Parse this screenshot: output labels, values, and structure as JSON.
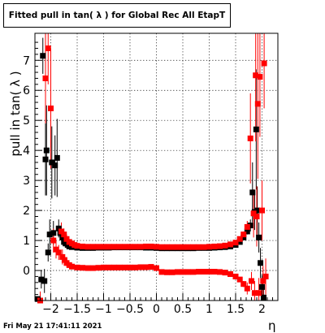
{
  "title": "Fitted pull in tan( λ ) for Global Rec All EtapT",
  "timestamp": "Fri May 21 17:41:11 2021",
  "chart_data": {
    "type": "scatter",
    "title": "Fitted pull in tan( λ ) for Global Rec All EtapT",
    "xlabel": "η",
    "ylabel": "pull in tan( λ )",
    "xlim": [
      -2.3,
      2.3
    ],
    "ylim": [
      -1.0,
      7.9
    ],
    "grid": true,
    "x_ticks": [
      -2,
      -1.5,
      -1,
      -0.5,
      0,
      0.5,
      1,
      1.5,
      2
    ],
    "x_tick_labels": [
      "−2",
      "−1.5",
      "−1",
      "−0.5",
      "0",
      "0.5",
      "1",
      "1.5",
      "2"
    ],
    "y_ticks": [
      0,
      1,
      2,
      3,
      4,
      5,
      6,
      7
    ],
    "y_tick_labels": [
      "0",
      "1",
      "2",
      "3",
      "4",
      "5",
      "6",
      "7"
    ],
    "colors": {
      "black_series": "#000000",
      "red_series": "#ff0000"
    },
    "series": [
      {
        "color": "black",
        "points": [
          {
            "x": -2.25,
            "y": -0.95,
            "err": 0.0
          },
          {
            "x": -2.18,
            "y": -0.3,
            "err": 0.3
          },
          {
            "x": -2.15,
            "y": 7.15,
            "err": 0.6
          },
          {
            "x": -2.12,
            "y": -0.35,
            "err": 0.4
          },
          {
            "x": -2.1,
            "y": 3.7,
            "err": 1.2
          },
          {
            "x": -2.08,
            "y": 4.0,
            "err": 1.5
          },
          {
            "x": -2.05,
            "y": 0.6,
            "err": 0.3
          },
          {
            "x": -2.02,
            "y": 1.2,
            "err": 0.5
          },
          {
            "x": -1.98,
            "y": 3.6,
            "err": 1.2
          },
          {
            "x": -1.95,
            "y": 1.25,
            "err": 0.4
          },
          {
            "x": -1.92,
            "y": 3.5,
            "err": 1.0
          },
          {
            "x": -1.88,
            "y": 3.75,
            "err": 1.3
          },
          {
            "x": -1.85,
            "y": 1.4,
            "err": 0.3
          },
          {
            "x": -1.82,
            "y": 1.25,
            "err": 0.2
          },
          {
            "x": -1.78,
            "y": 1.1,
            "err": 0.15
          },
          {
            "x": -1.75,
            "y": 0.95,
            "err": 0.1
          },
          {
            "x": -1.72,
            "y": 0.9,
            "err": 0.05
          },
          {
            "x": -1.68,
            "y": 0.85,
            "err": 0.05
          },
          {
            "x": -1.65,
            "y": 0.8,
            "err": 0.03
          },
          {
            "x": -1.6,
            "y": 0.78,
            "err": 0.02
          },
          {
            "x": -1.5,
            "y": 0.76,
            "err": 0.02
          },
          {
            "x": -1.4,
            "y": 0.75,
            "err": 0.02
          },
          {
            "x": -1.3,
            "y": 0.75,
            "err": 0.02
          },
          {
            "x": -1.2,
            "y": 0.75,
            "err": 0.02
          },
          {
            "x": -1.1,
            "y": 0.76,
            "err": 0.02
          },
          {
            "x": -1.0,
            "y": 0.76,
            "err": 0.02
          },
          {
            "x": -0.9,
            "y": 0.76,
            "err": 0.02
          },
          {
            "x": -0.8,
            "y": 0.77,
            "err": 0.02
          },
          {
            "x": -0.7,
            "y": 0.77,
            "err": 0.02
          },
          {
            "x": -0.6,
            "y": 0.77,
            "err": 0.02
          },
          {
            "x": -0.5,
            "y": 0.77,
            "err": 0.02
          },
          {
            "x": -0.4,
            "y": 0.77,
            "err": 0.02
          },
          {
            "x": -0.3,
            "y": 0.77,
            "err": 0.02
          },
          {
            "x": -0.2,
            "y": 0.76,
            "err": 0.02
          },
          {
            "x": -0.1,
            "y": 0.76,
            "err": 0.02
          },
          {
            "x": 0.0,
            "y": 0.75,
            "err": 0.02
          },
          {
            "x": 0.1,
            "y": 0.74,
            "err": 0.02
          },
          {
            "x": 0.2,
            "y": 0.74,
            "err": 0.02
          },
          {
            "x": 0.3,
            "y": 0.74,
            "err": 0.02
          },
          {
            "x": 0.4,
            "y": 0.74,
            "err": 0.02
          },
          {
            "x": 0.5,
            "y": 0.74,
            "err": 0.02
          },
          {
            "x": 0.6,
            "y": 0.74,
            "err": 0.02
          },
          {
            "x": 0.7,
            "y": 0.74,
            "err": 0.02
          },
          {
            "x": 0.8,
            "y": 0.75,
            "err": 0.02
          },
          {
            "x": 0.9,
            "y": 0.75,
            "err": 0.02
          },
          {
            "x": 1.0,
            "y": 0.75,
            "err": 0.02
          },
          {
            "x": 1.1,
            "y": 0.76,
            "err": 0.02
          },
          {
            "x": 1.2,
            "y": 0.77,
            "err": 0.02
          },
          {
            "x": 1.3,
            "y": 0.78,
            "err": 0.02
          },
          {
            "x": 1.4,
            "y": 0.8,
            "err": 0.03
          },
          {
            "x": 1.5,
            "y": 0.85,
            "err": 0.03
          },
          {
            "x": 1.58,
            "y": 0.95,
            "err": 0.05
          },
          {
            "x": 1.65,
            "y": 1.1,
            "err": 0.08
          },
          {
            "x": 1.72,
            "y": 1.3,
            "err": 0.1
          },
          {
            "x": 1.78,
            "y": 1.5,
            "err": 0.2
          },
          {
            "x": 1.82,
            "y": 2.6,
            "err": 1.0
          },
          {
            "x": 1.86,
            "y": 1.95,
            "err": 0.6
          },
          {
            "x": 1.89,
            "y": 4.7,
            "err": 2.0
          },
          {
            "x": 1.91,
            "y": 2.0,
            "err": 0.8
          },
          {
            "x": 1.94,
            "y": 1.1,
            "err": 0.5
          },
          {
            "x": 1.97,
            "y": 0.25,
            "err": 0.5
          },
          {
            "x": 2.0,
            "y": -0.55,
            "err": 0.4
          },
          {
            "x": 2.03,
            "y": -0.9,
            "err": 0.3
          }
        ]
      },
      {
        "color": "red",
        "points": [
          {
            "x": -2.1,
            "y": 6.4,
            "err": 1.5
          },
          {
            "x": -2.05,
            "y": 7.4,
            "err": 1.2
          },
          {
            "x": -2.0,
            "y": 5.4,
            "err": 2.0
          },
          {
            "x": -1.95,
            "y": 1.0,
            "err": 0.4
          },
          {
            "x": -1.9,
            "y": 0.7,
            "err": 0.3
          },
          {
            "x": -1.85,
            "y": 0.6,
            "err": 0.25
          },
          {
            "x": -1.8,
            "y": 1.3,
            "err": 0.3
          },
          {
            "x": -1.75,
            "y": 1.2,
            "err": 0.2
          },
          {
            "x": -1.7,
            "y": 1.05,
            "err": 0.15
          },
          {
            "x": -1.65,
            "y": 0.95,
            "err": 0.1
          },
          {
            "x": -1.6,
            "y": 0.9,
            "err": 0.06
          },
          {
            "x": -1.55,
            "y": 0.85,
            "err": 0.05
          },
          {
            "x": -1.5,
            "y": 0.82,
            "err": 0.04
          },
          {
            "x": -1.4,
            "y": 0.8,
            "err": 0.03
          },
          {
            "x": -1.3,
            "y": 0.79,
            "err": 0.02
          },
          {
            "x": -1.2,
            "y": 0.79,
            "err": 0.02
          },
          {
            "x": -1.1,
            "y": 0.79,
            "err": 0.02
          },
          {
            "x": -1.0,
            "y": 0.79,
            "err": 0.02
          },
          {
            "x": -0.9,
            "y": 0.79,
            "err": 0.02
          },
          {
            "x": -0.8,
            "y": 0.79,
            "err": 0.02
          },
          {
            "x": -0.7,
            "y": 0.79,
            "err": 0.02
          },
          {
            "x": -0.6,
            "y": 0.79,
            "err": 0.02
          },
          {
            "x": -0.5,
            "y": 0.79,
            "err": 0.02
          },
          {
            "x": -0.4,
            "y": 0.79,
            "err": 0.02
          },
          {
            "x": -0.3,
            "y": 0.79,
            "err": 0.02
          },
          {
            "x": -0.2,
            "y": 0.8,
            "err": 0.02
          },
          {
            "x": -0.1,
            "y": 0.8,
            "err": 0.02
          },
          {
            "x": 0.0,
            "y": 0.79,
            "err": 0.02
          },
          {
            "x": 0.1,
            "y": 0.78,
            "err": 0.02
          },
          {
            "x": 0.2,
            "y": 0.78,
            "err": 0.02
          },
          {
            "x": 0.3,
            "y": 0.78,
            "err": 0.02
          },
          {
            "x": 0.4,
            "y": 0.78,
            "err": 0.02
          },
          {
            "x": 0.5,
            "y": 0.78,
            "err": 0.02
          },
          {
            "x": 0.6,
            "y": 0.78,
            "err": 0.02
          },
          {
            "x": 0.7,
            "y": 0.78,
            "err": 0.02
          },
          {
            "x": 0.8,
            "y": 0.78,
            "err": 0.02
          },
          {
            "x": 0.9,
            "y": 0.78,
            "err": 0.02
          },
          {
            "x": 1.0,
            "y": 0.79,
            "err": 0.02
          },
          {
            "x": 1.1,
            "y": 0.8,
            "err": 0.02
          },
          {
            "x": 1.2,
            "y": 0.81,
            "err": 0.02
          },
          {
            "x": 1.3,
            "y": 0.83,
            "err": 0.03
          },
          {
            "x": 1.4,
            "y": 0.87,
            "err": 0.03
          },
          {
            "x": 1.5,
            "y": 0.93,
            "err": 0.04
          },
          {
            "x": 1.58,
            "y": 1.05,
            "err": 0.06
          },
          {
            "x": 1.65,
            "y": 1.2,
            "err": 0.1
          },
          {
            "x": 1.72,
            "y": 1.45,
            "err": 0.2
          },
          {
            "x": 1.78,
            "y": 4.4,
            "err": 1.5
          },
          {
            "x": 1.84,
            "y": 1.9,
            "err": 0.8
          },
          {
            "x": 1.88,
            "y": 6.5,
            "err": 2.2
          },
          {
            "x": 1.9,
            "y": 1.8,
            "err": 1.0
          },
          {
            "x": 1.92,
            "y": 5.55,
            "err": 2.5
          },
          {
            "x": 1.96,
            "y": 6.45,
            "err": 2.0
          },
          {
            "x": 2.0,
            "y": 2.0,
            "err": 1.0
          },
          {
            "x": 2.04,
            "y": 6.9,
            "err": 1.5
          },
          {
            "x": 2.07,
            "y": -0.2,
            "err": 0.6
          },
          {
            "x": -2.2,
            "y": -1.0,
            "err": 0.3
          },
          {
            "x": -1.78,
            "y": 0.45,
            "err": 0.25
          },
          {
            "x": -1.74,
            "y": 0.35,
            "err": 0.15
          },
          {
            "x": -1.7,
            "y": 0.25,
            "err": 0.1
          },
          {
            "x": -1.65,
            "y": 0.18,
            "err": 0.06
          },
          {
            "x": -1.6,
            "y": 0.13,
            "err": 0.04
          },
          {
            "x": -1.5,
            "y": 0.1,
            "err": 0.03
          },
          {
            "x": -1.4,
            "y": 0.09,
            "err": 0.02
          },
          {
            "x": -1.3,
            "y": 0.08,
            "err": 0.02
          },
          {
            "x": -1.2,
            "y": 0.08,
            "err": 0.02
          },
          {
            "x": -1.1,
            "y": 0.09,
            "err": 0.02
          },
          {
            "x": -1.0,
            "y": 0.1,
            "err": 0.02
          },
          {
            "x": -0.9,
            "y": 0.1,
            "err": 0.02
          },
          {
            "x": -0.8,
            "y": 0.1,
            "err": 0.02
          },
          {
            "x": -0.7,
            "y": 0.1,
            "err": 0.02
          },
          {
            "x": -0.6,
            "y": 0.1,
            "err": 0.02
          },
          {
            "x": -0.5,
            "y": 0.1,
            "err": 0.02
          },
          {
            "x": -0.4,
            "y": 0.1,
            "err": 0.02
          },
          {
            "x": -0.3,
            "y": 0.11,
            "err": 0.02
          },
          {
            "x": -0.2,
            "y": 0.11,
            "err": 0.02
          },
          {
            "x": -0.1,
            "y": 0.12,
            "err": 0.02
          },
          {
            "x": 0.0,
            "y": 0.08,
            "err": 0.02
          },
          {
            "x": 0.1,
            "y": -0.05,
            "err": 0.02
          },
          {
            "x": 0.2,
            "y": -0.06,
            "err": 0.02
          },
          {
            "x": 0.3,
            "y": -0.06,
            "err": 0.02
          },
          {
            "x": 0.4,
            "y": -0.05,
            "err": 0.02
          },
          {
            "x": 0.5,
            "y": -0.05,
            "err": 0.02
          },
          {
            "x": 0.6,
            "y": -0.05,
            "err": 0.02
          },
          {
            "x": 0.7,
            "y": -0.05,
            "err": 0.02
          },
          {
            "x": 0.8,
            "y": -0.04,
            "err": 0.02
          },
          {
            "x": 0.9,
            "y": -0.04,
            "err": 0.02
          },
          {
            "x": 1.0,
            "y": -0.04,
            "err": 0.02
          },
          {
            "x": 1.1,
            "y": -0.04,
            "err": 0.02
          },
          {
            "x": 1.2,
            "y": -0.05,
            "err": 0.02
          },
          {
            "x": 1.3,
            "y": -0.07,
            "err": 0.02
          },
          {
            "x": 1.4,
            "y": -0.12,
            "err": 0.03
          },
          {
            "x": 1.5,
            "y": -0.2,
            "err": 0.04
          },
          {
            "x": 1.58,
            "y": -0.3,
            "err": 0.06
          },
          {
            "x": 1.65,
            "y": -0.45,
            "err": 0.1
          },
          {
            "x": 1.72,
            "y": -0.6,
            "err": 0.2
          },
          {
            "x": 1.8,
            "y": -0.35,
            "err": 0.3
          },
          {
            "x": 1.86,
            "y": -0.75,
            "err": 0.4
          },
          {
            "x": 1.94,
            "y": -0.75,
            "err": 0.5
          },
          {
            "x": 2.02,
            "y": -0.35,
            "err": 0.5
          }
        ]
      }
    ]
  }
}
